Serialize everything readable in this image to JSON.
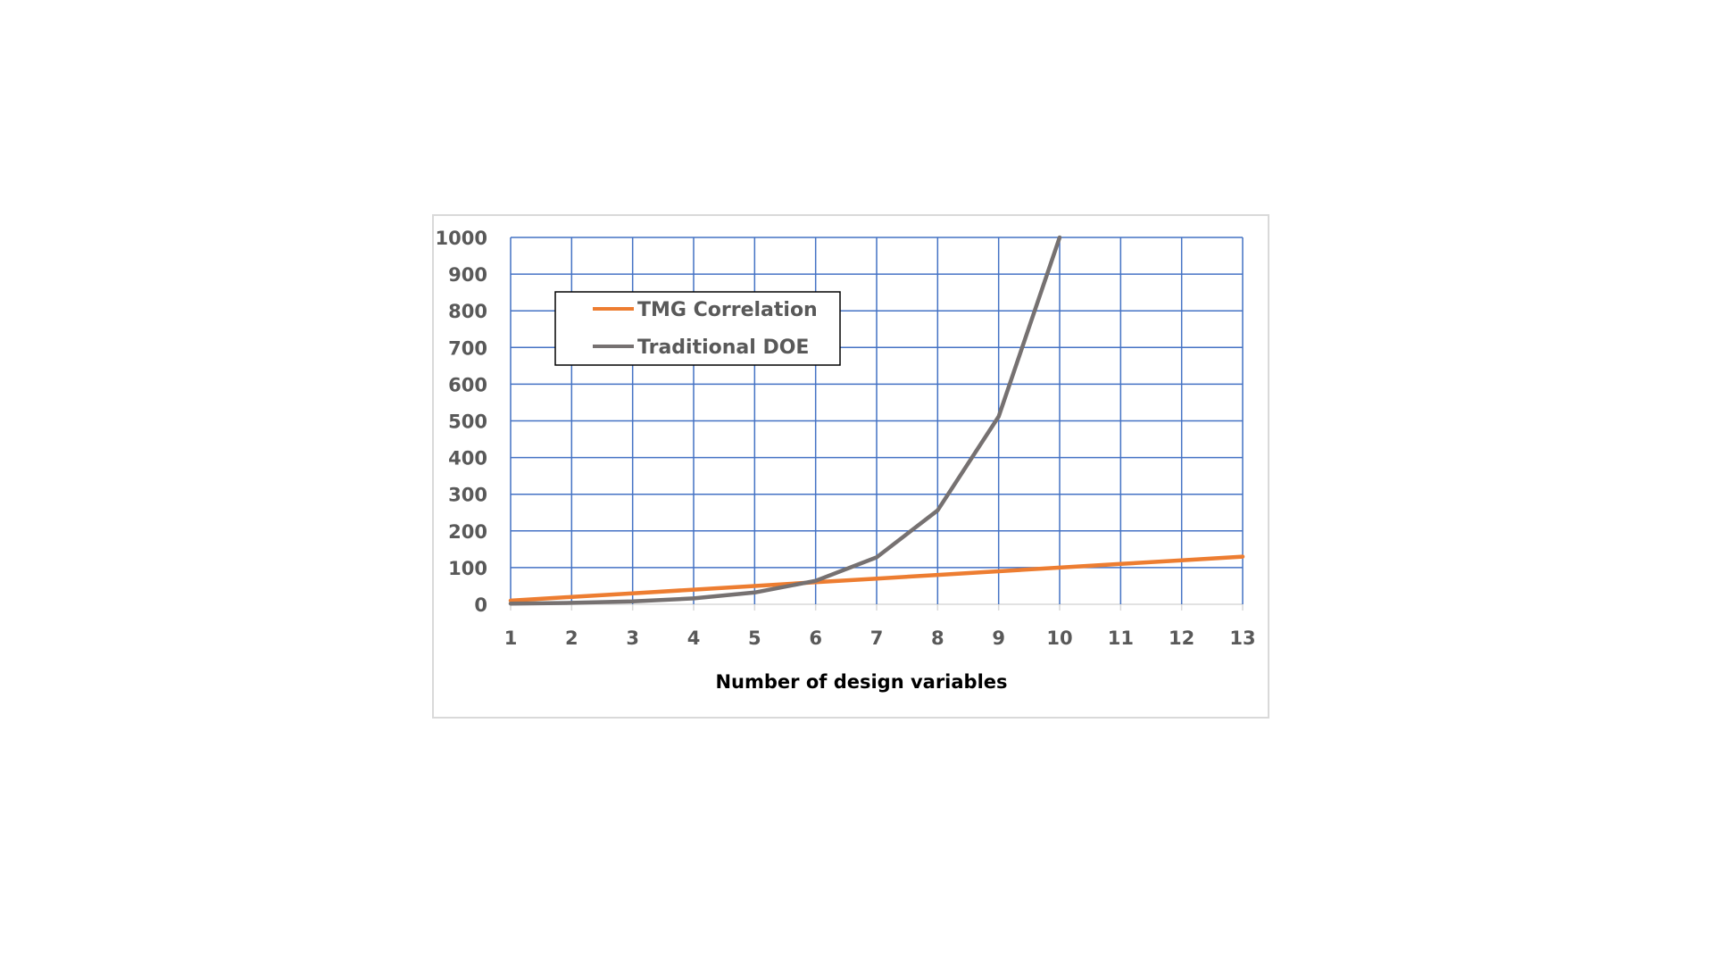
{
  "chart_data": {
    "type": "line",
    "title": "",
    "xlabel": "Number of design variables",
    "ylabel": "",
    "x": [
      1,
      2,
      3,
      4,
      5,
      6,
      7,
      8,
      9,
      10,
      11,
      12,
      13
    ],
    "x_tick_labels": [
      "1",
      "2",
      "3",
      "4",
      "5",
      "6",
      "7",
      "8",
      "9",
      "10",
      "11",
      "12",
      "13"
    ],
    "y_tick_labels": [
      "0",
      "100",
      "200",
      "300",
      "400",
      "500",
      "600",
      "700",
      "800",
      "900",
      "1000"
    ],
    "ylim": [
      0,
      1000
    ],
    "grid": true,
    "legend_position": "top-left",
    "series": [
      {
        "name": "TMG Correlation",
        "color": "#ED7D31",
        "values": [
          10,
          20,
          30,
          40,
          50,
          60,
          70,
          80,
          90,
          100,
          110,
          120,
          130
        ]
      },
      {
        "name": "Traditional DOE",
        "color": "#767171",
        "values": [
          2,
          4,
          8,
          16,
          32,
          64,
          128,
          256,
          512,
          1000,
          null,
          null,
          null
        ]
      }
    ],
    "grid_color": "#4472C4"
  }
}
